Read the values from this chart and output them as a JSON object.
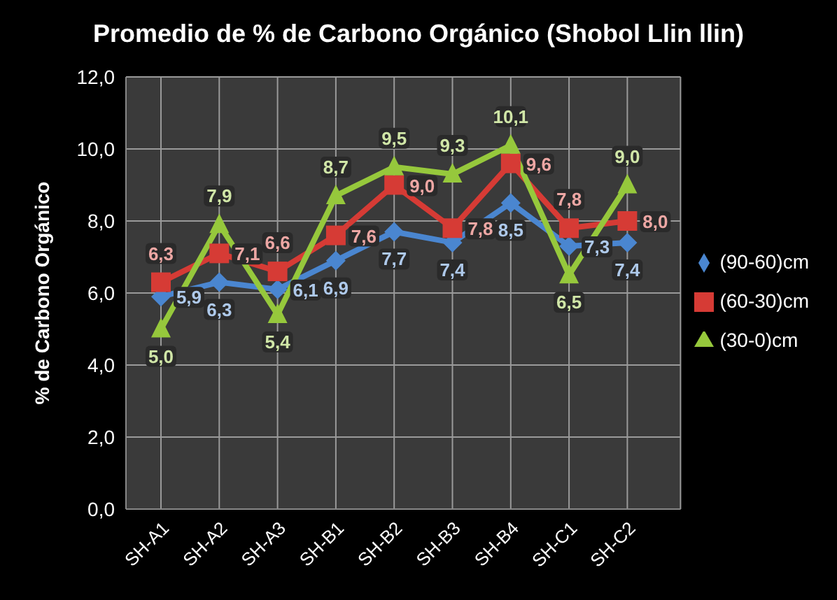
{
  "chart_data": {
    "type": "line",
    "title": "Promedio de % de Carbono Orgánico (Shobol Llin llin)",
    "ylabel": "% de Carbono Orgánico",
    "categories": [
      "SH-A1",
      "SH-A2",
      "SH-A3",
      "SH-B1",
      "SH-B2",
      "SH-B3",
      "SH-B4",
      "SH-C1",
      "SH-C2"
    ],
    "series": [
      {
        "name": "(90-60)cm",
        "color": "#4a86d0",
        "marker": "diamond",
        "values": [
          5.9,
          6.3,
          6.1,
          6.9,
          7.7,
          7.4,
          8.5,
          7.3,
          7.4
        ],
        "value_labels": [
          "5,9",
          "6,3",
          "6,1",
          "6,9",
          "7,7",
          "7,4",
          "8,5",
          "7,3",
          "7,4"
        ]
      },
      {
        "name": "(60-30)cm",
        "color": "#d63b35",
        "marker": "square",
        "values": [
          6.3,
          7.1,
          6.6,
          7.6,
          9.0,
          7.8,
          9.6,
          7.8,
          8.0
        ],
        "value_labels": [
          "6,3",
          "7,1",
          "6,6",
          "7,6",
          "9,0",
          "7,8",
          "9,6",
          "7,8",
          "8,0"
        ]
      },
      {
        "name": "(30-0)cm",
        "color": "#96c83c",
        "marker": "triangle",
        "values": [
          5.0,
          7.9,
          5.4,
          8.7,
          9.5,
          9.3,
          10.1,
          6.5,
          9.0
        ],
        "value_labels": [
          "5,0",
          "7,9",
          "5,4",
          "8,7",
          "9,5",
          "9,3",
          "10,1",
          "6,5",
          "9,0"
        ]
      }
    ],
    "ylim": [
      0,
      12
    ],
    "yticks": [
      {
        "value": 0,
        "label": "0,0"
      },
      {
        "value": 2,
        "label": "2,0"
      },
      {
        "value": 4,
        "label": "4,0"
      },
      {
        "value": 6,
        "label": "6,0"
      },
      {
        "value": 8,
        "label": "8,0"
      },
      {
        "value": 10,
        "label": "10,0"
      },
      {
        "value": 12,
        "label": "12,0"
      }
    ],
    "grid": true,
    "legend": "right"
  }
}
